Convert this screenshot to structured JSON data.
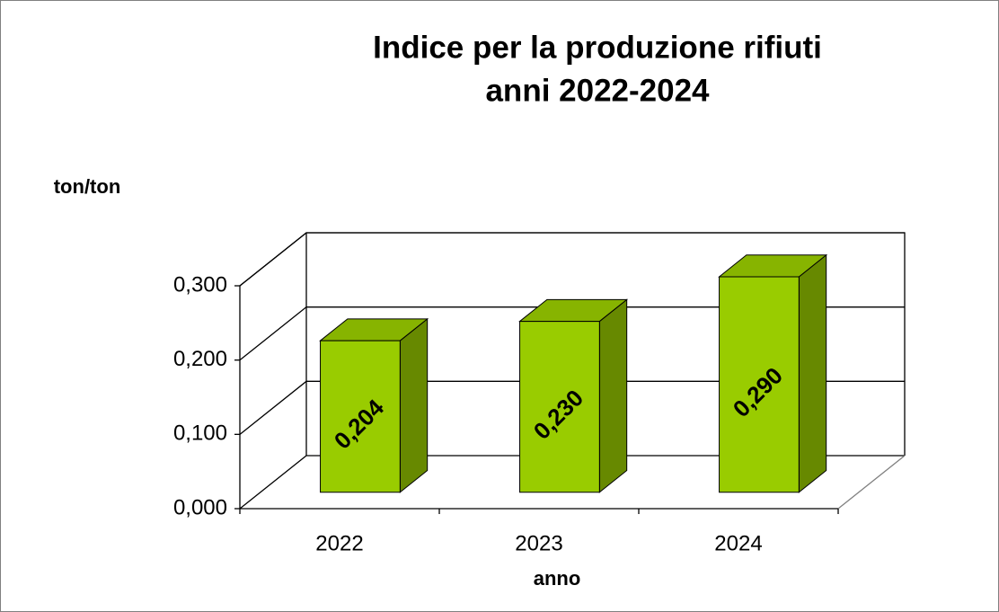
{
  "chart_data": {
    "type": "bar3d",
    "title": [
      "Indice per la produzione rifiuti",
      "anni 2022-2024"
    ],
    "ylabel": "ton/ton",
    "xlabel": "anno",
    "categories": [
      "2022",
      "2023",
      "2024"
    ],
    "values": [
      0.204,
      0.23,
      0.29
    ],
    "value_labels": [
      "0,204",
      "0,230",
      "0,290"
    ],
    "color": "#99cc00",
    "ylim": [
      0,
      0.3
    ],
    "yticks": [
      {
        "value": 0,
        "label": "0,000"
      },
      {
        "value": 0.1,
        "label": "0,100"
      },
      {
        "value": 0.2,
        "label": "0,200"
      },
      {
        "value": 0.3,
        "label": "0,300"
      }
    ],
    "grid": true
  }
}
